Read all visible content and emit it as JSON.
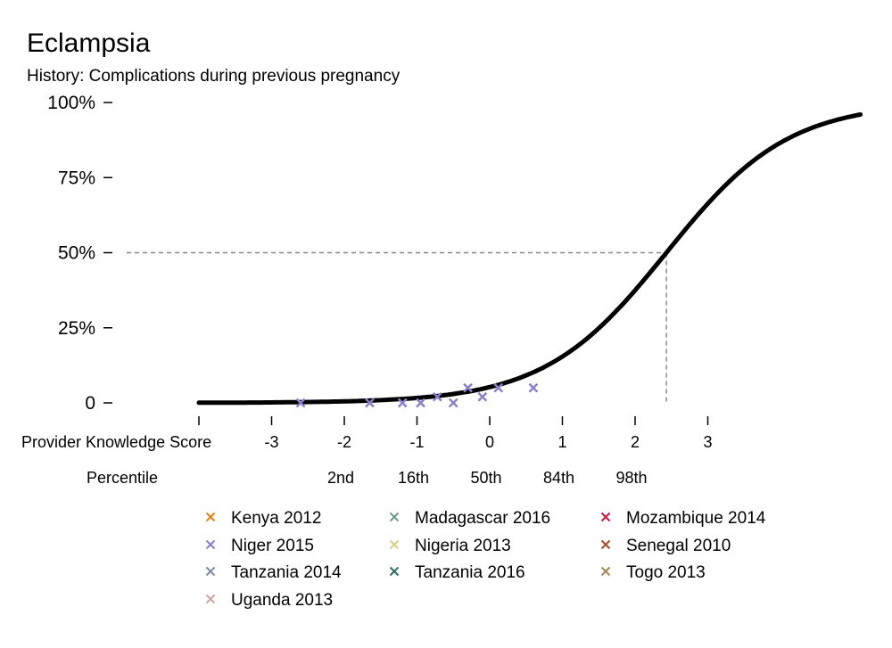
{
  "chart_data": {
    "type": "line",
    "title": "Eclampsia",
    "subtitle": "History: Complications during previous pregnancy",
    "y_ticks": [
      "0",
      "25%",
      "50%",
      "75%",
      "100%"
    ],
    "y_tick_values": [
      0,
      0.25,
      0.5,
      0.75,
      1.0
    ],
    "ylim": [
      0,
      1
    ],
    "xlim": [
      -4.0,
      5.1
    ],
    "x_axis_label": "Provider Knowledge Score",
    "x_ticks": [
      "-3",
      "-2",
      "-1",
      "0",
      "1",
      "2",
      "3"
    ],
    "x_tick_values": [
      -3,
      -2,
      -1,
      0,
      1,
      2,
      3
    ],
    "percentile_label": "Percentile",
    "percentile_ticks": [
      "2nd",
      "16th",
      "50th",
      "84th",
      "98th"
    ],
    "percentile_values": [
      -2,
      -1,
      0,
      1,
      2
    ],
    "curve": {
      "x50": 2.43,
      "slope": 1.19,
      "x_start": -4.0,
      "x_end": 5.1
    },
    "reference_point": {
      "x": 2.43,
      "y": 0.5
    },
    "grid": false,
    "legend_placement": "bottom",
    "legend": [
      {
        "name": "Kenya 2012",
        "color": "#E08214"
      },
      {
        "name": "Madagascar 2016",
        "color": "#6E9B8C"
      },
      {
        "name": "Mozambique 2014",
        "color": "#CC1440"
      },
      {
        "name": "Niger 2015",
        "color": "#8C80C8"
      },
      {
        "name": "Nigeria 2013",
        "color": "#D6CF8A"
      },
      {
        "name": "Senegal 2010",
        "color": "#A5502A"
      },
      {
        "name": "Tanzania 2014",
        "color": "#7E8CA6"
      },
      {
        "name": "Tanzania 2016",
        "color": "#2F6E64"
      },
      {
        "name": "Togo 2013",
        "color": "#9C8A56"
      },
      {
        "name": "Uganda 2013",
        "color": "#C8A8A0"
      }
    ],
    "series": [
      {
        "name": "Niger 2015",
        "color": "#8C80C8",
        "points": [
          {
            "x": -2.6,
            "y": 0.0
          },
          {
            "x": -1.65,
            "y": 0.0
          },
          {
            "x": -1.2,
            "y": 0.0
          },
          {
            "x": -0.95,
            "y": 0.0
          },
          {
            "x": -0.72,
            "y": 0.02
          },
          {
            "x": -0.5,
            "y": 0.0
          },
          {
            "x": -0.3,
            "y": 0.05
          },
          {
            "x": -0.1,
            "y": 0.02
          },
          {
            "x": 0.12,
            "y": 0.05
          },
          {
            "x": 0.6,
            "y": 0.05
          }
        ]
      }
    ]
  }
}
